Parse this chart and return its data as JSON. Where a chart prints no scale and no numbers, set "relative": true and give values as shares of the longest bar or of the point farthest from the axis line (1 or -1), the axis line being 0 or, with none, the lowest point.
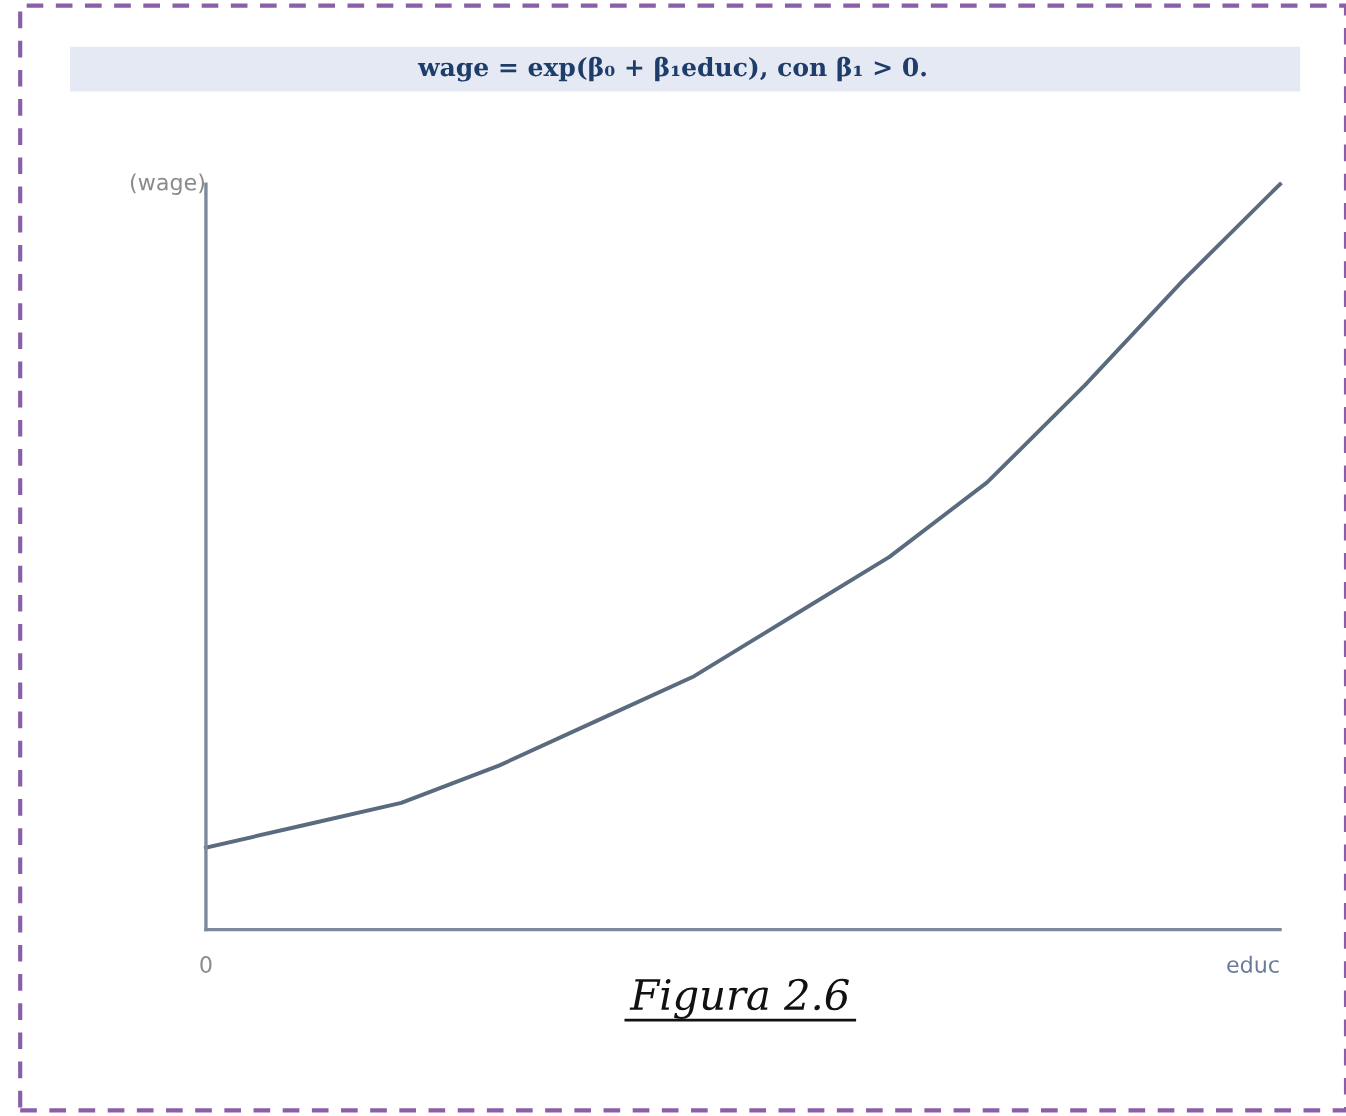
{
  "chart_data": {
    "type": "line",
    "title": "wage = exp(β₀ + β₁educ), con β₁ > 0.",
    "xlabel": "educ",
    "ylabel": "(wage)",
    "relative": true,
    "categories": [
      null,
      null,
      null,
      null,
      null,
      null,
      null,
      null,
      null,
      null,
      null,
      null
    ],
    "series": [
      {
        "color": "#5a6b80",
        "values": [
          0.11,
          0.14,
          0.17,
          0.22,
          0.28,
          0.34,
          0.42,
          0.5,
          0.6,
          0.73,
          0.87,
          1.0
        ]
      }
    ],
    "annotations": [
      "0",
      "Figura 2.6"
    ],
    "grid": false,
    "legend": false,
    "marker": "none",
    "line_style": "solid"
  }
}
